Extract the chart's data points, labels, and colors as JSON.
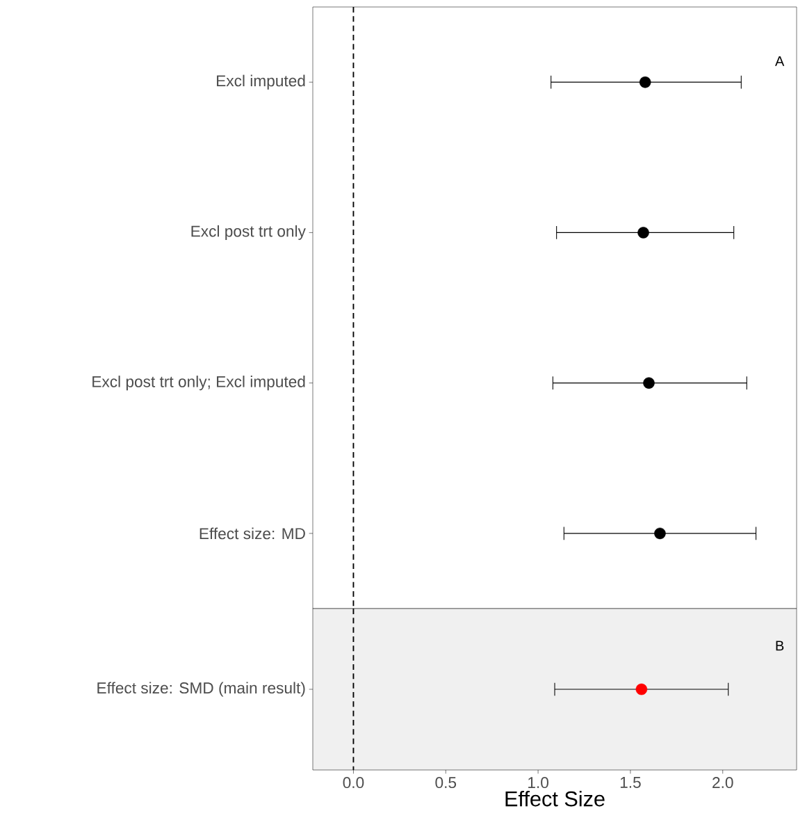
{
  "chart_data": [
    {
      "type": "scatter",
      "orientation": "horizontal",
      "categories": [
        "Excl imputed",
        "Excl post trt only",
        "Excl post trt only; Excl imputed",
        "Effect size: MD"
      ],
      "values": [
        1.58,
        1.57,
        1.6,
        1.66
      ],
      "errors": [
        [
          1.07,
          2.1
        ],
        [
          1.1,
          2.06
        ],
        [
          1.08,
          2.13
        ],
        [
          1.14,
          2.18
        ]
      ],
      "color": "#000000",
      "marker": "circle",
      "xlim": [
        -0.22,
        2.4
      ],
      "tick_labels": "y",
      "grid": false,
      "ref_lines": [
        {
          "axis": "x",
          "value": 0,
          "line_style": "dashed",
          "color": "#000000"
        }
      ],
      "annotations": [
        "A"
      ]
    },
    {
      "type": "scatter",
      "orientation": "horizontal",
      "categories": [
        "Effect size: SMD (main result)"
      ],
      "values": [
        1.56
      ],
      "errors": [
        [
          1.09,
          2.03
        ]
      ],
      "color": "#ff0000",
      "marker": "circle",
      "xlim": [
        -0.22,
        2.4
      ],
      "xticks": [
        {
          "value": 0,
          "label": "0.0"
        },
        0.5,
        {
          "value": 1,
          "label": "1.0"
        },
        1.5,
        {
          "value": 2,
          "label": "2.0"
        }
      ],
      "xlabel": "Effect Size",
      "grid": false,
      "ref_lines": [
        {
          "axis": "x",
          "value": 0,
          "line_style": "dashed",
          "color": "#000000"
        }
      ],
      "annotations": [
        "B"
      ]
    }
  ]
}
